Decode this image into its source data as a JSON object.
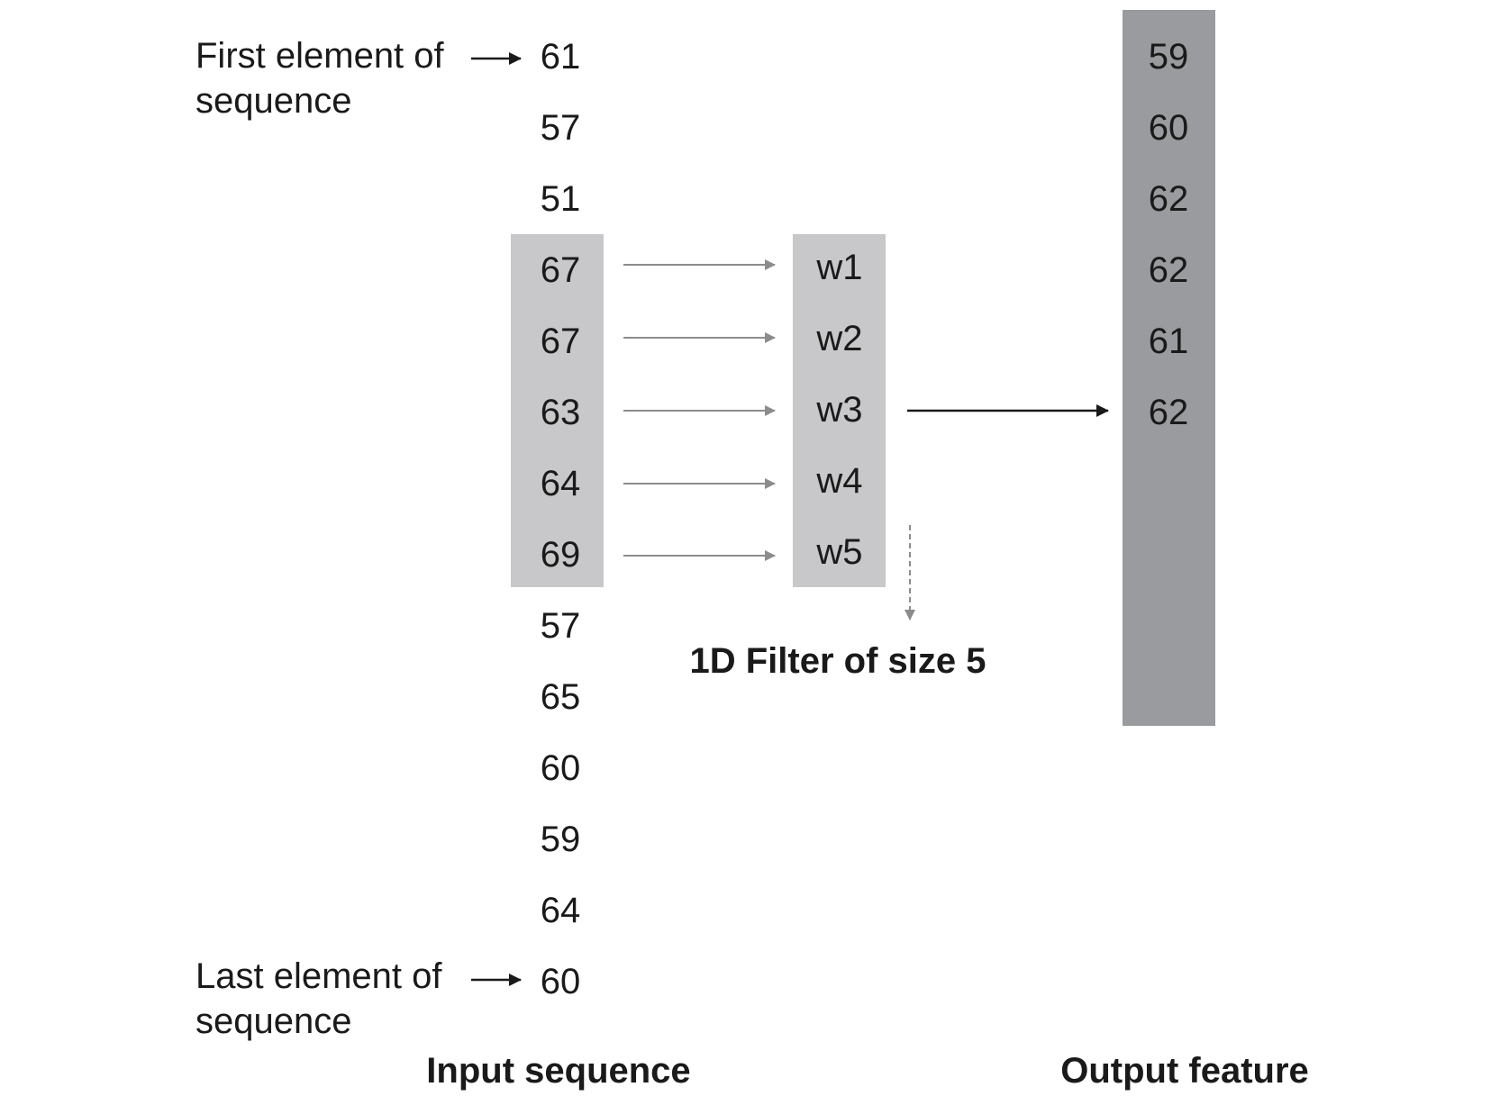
{
  "input": {
    "values": [
      "61",
      "57",
      "51",
      "67",
      "67",
      "63",
      "64",
      "69",
      "57",
      "65",
      "60",
      "59",
      "64",
      "60"
    ],
    "window_start": 3,
    "window_size": 5,
    "first_label_line1": "First element of",
    "first_label_line2": "sequence",
    "last_label_line1": "Last element of",
    "last_label_line2": "sequence",
    "caption": "Input sequence"
  },
  "filter": {
    "weights": [
      "w1",
      "w2",
      "w3",
      "w4",
      "w5"
    ],
    "caption": "1D Filter of size 5"
  },
  "output": {
    "values": [
      "59",
      "60",
      "62",
      "62",
      "61",
      "62"
    ],
    "caption": "Output feature"
  },
  "colors": {
    "window_fill": "#c8c8ca",
    "filter_fill": "#c8c8ca",
    "output_fill": "#9a9b9e",
    "thin_arrow": "#8c8c8c",
    "bold_arrow": "#1a1a1a"
  }
}
